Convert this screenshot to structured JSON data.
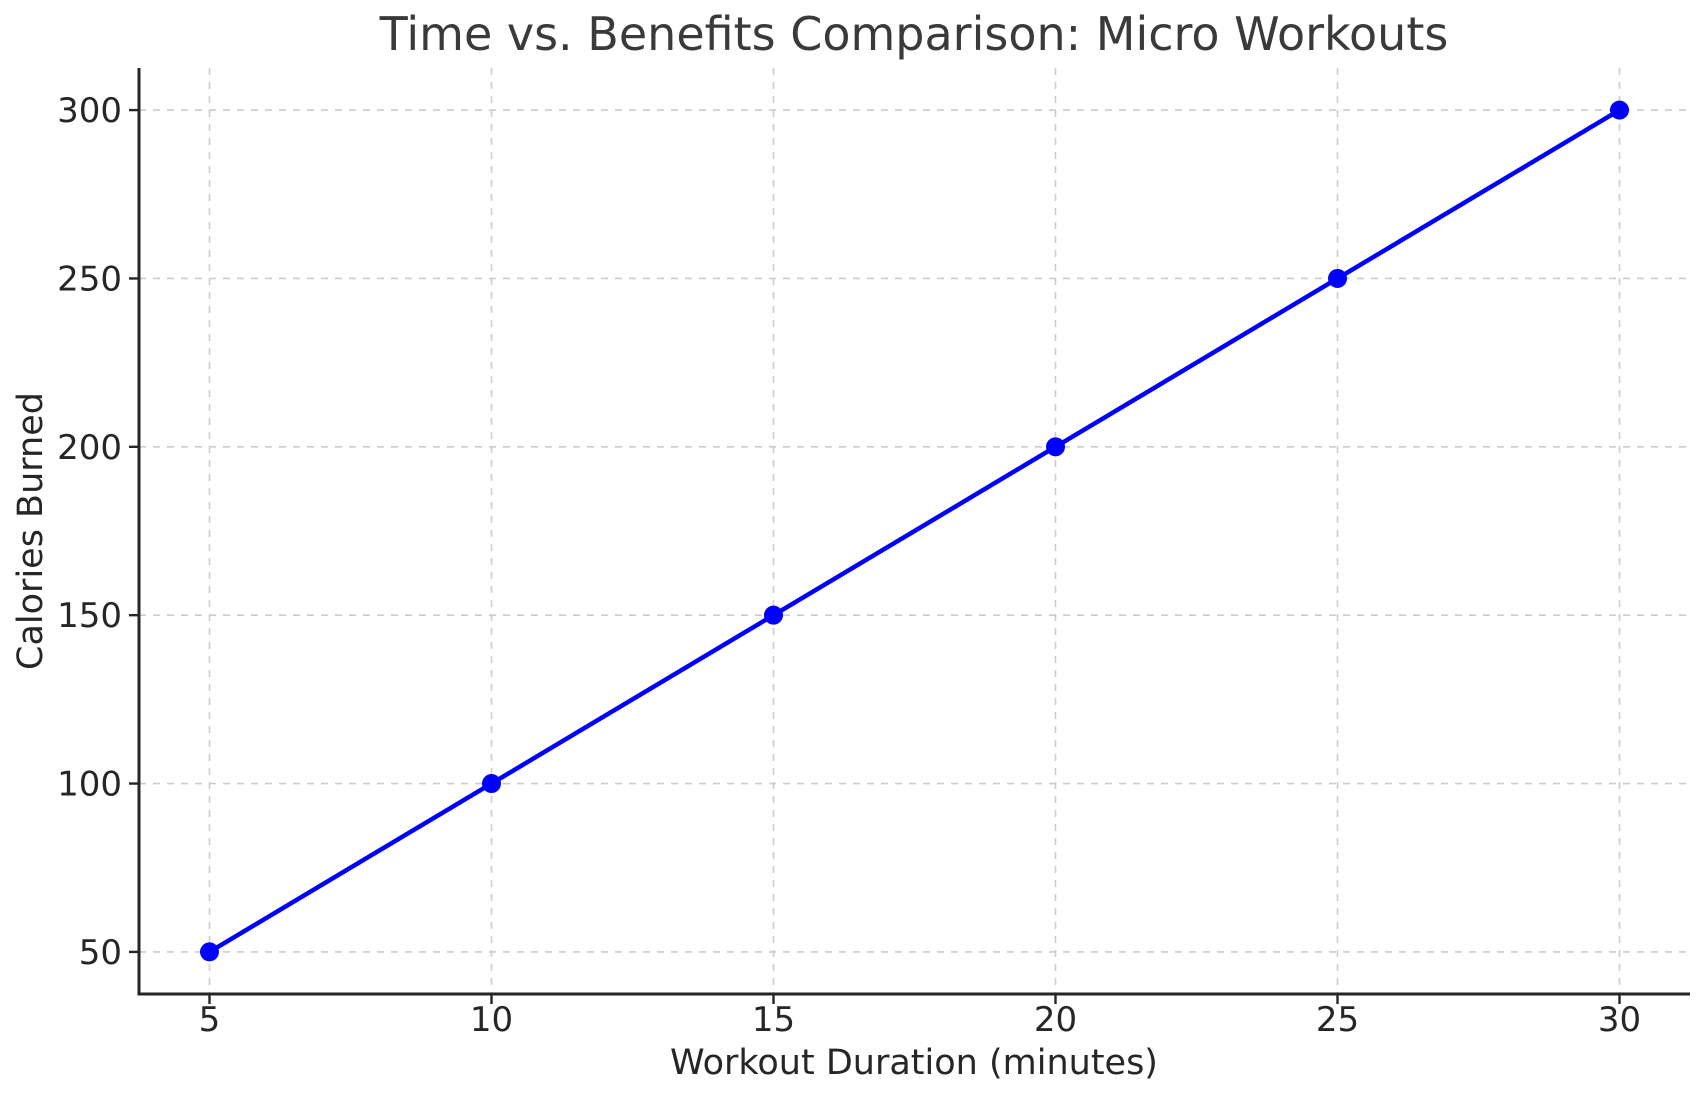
{
  "chart_data": {
    "type": "line",
    "title": "Time vs. Benefits Comparison: Micro Workouts",
    "xlabel": "Workout Duration (minutes)",
    "ylabel": "Calories Burned",
    "x": [
      5,
      10,
      15,
      20,
      25,
      30
    ],
    "series": [
      {
        "name": "Calories Burned",
        "values": [
          50,
          100,
          150,
          200,
          250,
          300
        ],
        "color": "#0000ff",
        "marker": "circle",
        "marker_size": 9.5,
        "line_width": 4.5
      }
    ],
    "xticks": [
      5,
      10,
      15,
      20,
      25,
      30
    ],
    "yticks": [
      50,
      100,
      150,
      200,
      250,
      300
    ],
    "xlim": [
      3.75,
      31.25
    ],
    "ylim": [
      37.5,
      312.5
    ],
    "grid": true,
    "grid_style": "dashed",
    "legend": "none",
    "colors": {
      "line": "#0000ff",
      "grid": "#cccccc",
      "spine": "#262626",
      "tick_label": "#262626",
      "title": "#3a3a3a",
      "background": "#ffffff"
    }
  }
}
